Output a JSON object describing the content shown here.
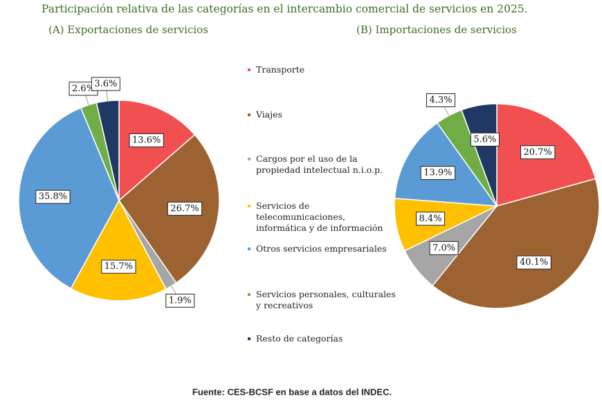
{
  "title": "Participación relativa de las categorías en el intercambio comercial de servicios en 2025.",
  "source": "Fuente: CES-BCSF en base a datos del INDEC.",
  "chart_data": [
    {
      "type": "pie",
      "title": "(A) Exportaciones de servicios",
      "categories": [
        "Transporte",
        "Viajes",
        "Cargos por el uso de la propiedad intelectual n.i.o.p.",
        "Servicios de telecomunicaciones, informática y de información",
        "Otros servicios empresariales",
        "Servicios personales, culturales y recreativos",
        "Resto de categorías"
      ],
      "colors": [
        "#f25050",
        "#9c6232",
        "#a6a6a6",
        "#ffc000",
        "#5b9bd5",
        "#70ad47",
        "#203864"
      ],
      "values": [
        13.6,
        26.7,
        1.9,
        15.7,
        35.8,
        2.6,
        3.6
      ],
      "value_labels": [
        "13.6%",
        "26.7%",
        "1.9%",
        "15.7%",
        "35.8%",
        "2.6%",
        "3.6%"
      ]
    },
    {
      "type": "pie",
      "title": "(B) Importaciones de servicios",
      "values": [
        20.7,
        40.1,
        7.0,
        8.4,
        13.9,
        4.3,
        5.6
      ],
      "value_labels": [
        "20.7%",
        "40.1%",
        "7.0%",
        "8.4%",
        "13.9%",
        "4.3%",
        "5.6%"
      ]
    }
  ]
}
